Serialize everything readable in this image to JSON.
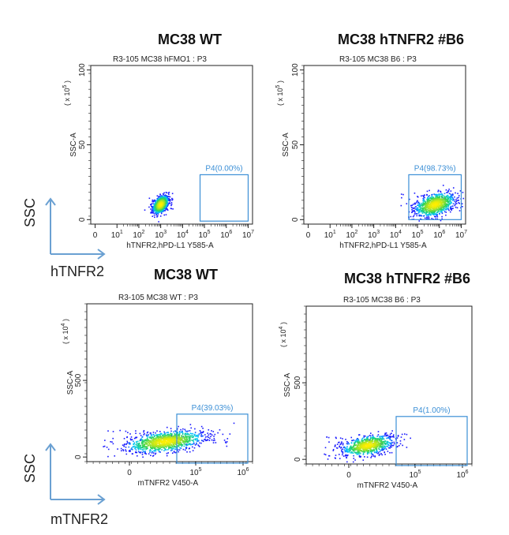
{
  "colors": {
    "gate": "#3b8fd6",
    "gate_label": "#3b8fd6",
    "arrow": "#6aa0d2",
    "axis": "#222222",
    "density_low": "#1a1aff",
    "density_mid": "#00c8ff",
    "density_high": "#ffee00"
  },
  "side_labels": {
    "row1_y": "SSC",
    "row1_x": "hTNFR2",
    "row2_y": "SSC",
    "row2_x": "mTNFR2"
  },
  "chart_data": [
    {
      "type": "scatter",
      "title": "MC38  WT",
      "subtitle": "R3-105 MC38 hFMO1 : P3",
      "xlabel": "hTNFR2,hPD-L1 Y585-A",
      "ylabel": "SSC-A",
      "y_multiplier": "( x 10",
      "y_multiplier_exp": "5",
      "x_scale": "log",
      "xlim_log": [
        -0.2,
        7.2
      ],
      "x_tick_labels": [
        "0",
        "10",
        "10",
        "10",
        "10",
        "10",
        "10",
        "10"
      ],
      "x_tick_exps": [
        "",
        "1",
        "2",
        "3",
        "4",
        "5",
        "6",
        "7"
      ],
      "x_tick_values_log": [
        0,
        1,
        2,
        3,
        4,
        5,
        6,
        7
      ],
      "ylim": [
        -3,
        103
      ],
      "y_tick_labels": [
        "0",
        "50",
        "100"
      ],
      "y_ticks": [
        0,
        50,
        100
      ],
      "gate": {
        "name": "P4",
        "percent": "0.00%",
        "label": "P4(0.00%)",
        "x_log": [
          4.8,
          7.0
        ],
        "y": [
          -1,
          30
        ]
      },
      "population": {
        "center_x_log": 3.0,
        "center_y": 10,
        "spread_x_log": 0.18,
        "spread_y": 3.5,
        "points": 700
      }
    },
    {
      "type": "scatter",
      "title": "MC38 hTNFR2 #B6",
      "subtitle": "R3-105 MC38 B6 : P3",
      "xlabel": "hTNFR2,hPD-L1 Y585-A",
      "ylabel": "SSC-A",
      "y_multiplier": "( x 10",
      "y_multiplier_exp": "5",
      "x_scale": "log",
      "xlim_log": [
        -0.2,
        7.2
      ],
      "x_tick_labels": [
        "0",
        "10",
        "10",
        "10",
        "10",
        "10",
        "10",
        "10"
      ],
      "x_tick_exps": [
        "",
        "1",
        "2",
        "3",
        "4",
        "5",
        "6",
        "7"
      ],
      "x_tick_values_log": [
        0,
        1,
        2,
        3,
        4,
        5,
        6,
        7
      ],
      "ylim": [
        -3,
        103
      ],
      "y_tick_labels": [
        "0",
        "50",
        "100"
      ],
      "y_ticks": [
        0,
        50,
        100
      ],
      "gate": {
        "name": "P4",
        "percent": "98.73%",
        "label": "P4(98.73%)",
        "x_log": [
          4.6,
          7.0
        ],
        "y": [
          0,
          30
        ]
      },
      "population": {
        "center_x_log": 5.8,
        "center_y": 10,
        "spread_x_log": 0.45,
        "spread_y": 4.5,
        "points": 900
      }
    },
    {
      "type": "scatter",
      "title": "MC38 WT",
      "subtitle": "R3-105 MC38 WT : P3",
      "xlabel": "mTNFR2 V450-A",
      "ylabel": "SSC-A",
      "y_multiplier": "( x 10",
      "y_multiplier_exp": "4",
      "x_scale": "biexp",
      "xlim": [
        -0.45,
        1.3
      ],
      "x_tick_labels": [
        "0",
        "10",
        "10"
      ],
      "x_tick_exps": [
        "",
        "5",
        "6"
      ],
      "x_tick_values": [
        0,
        0.7,
        1.2
      ],
      "ylim": [
        -30,
        1000
      ],
      "y_tick_labels": [
        "0",
        "500"
      ],
      "y_ticks": [
        0,
        500
      ],
      "gate": {
        "name": "P4",
        "percent": "39.03%",
        "label": "P4(39.03%)",
        "x": [
          0.5,
          1.25
        ],
        "y": [
          -40,
          280
        ]
      },
      "population": {
        "center_x": 0.38,
        "center_y": 100,
        "spread_x": 0.2,
        "spread_y": 40,
        "points": 1100
      }
    },
    {
      "type": "scatter",
      "title": "MC38 hTNFR2 #B6",
      "subtitle": "R3-105 MC38 B6 : P3",
      "xlabel": "mTNFR2 V450-A",
      "ylabel": "SSC-A",
      "y_multiplier": "( x 10",
      "y_multiplier_exp": "4",
      "x_scale": "biexp",
      "xlim": [
        -0.45,
        1.3
      ],
      "x_tick_labels": [
        "0",
        "10",
        "10"
      ],
      "x_tick_exps": [
        "",
        "5",
        "6"
      ],
      "x_tick_values": [
        0,
        0.7,
        1.2
      ],
      "ylim": [
        -30,
        1000
      ],
      "y_tick_labels": [
        "0",
        "500"
      ],
      "y_ticks": [
        0,
        500
      ],
      "gate": {
        "name": "P4",
        "percent": "1.00%",
        "label": "P4(1.00%)",
        "x": [
          0.5,
          1.25
        ],
        "y": [
          -40,
          280
        ]
      },
      "population": {
        "center_x": 0.2,
        "center_y": 90,
        "spread_x": 0.13,
        "spread_y": 38,
        "points": 800
      }
    }
  ]
}
